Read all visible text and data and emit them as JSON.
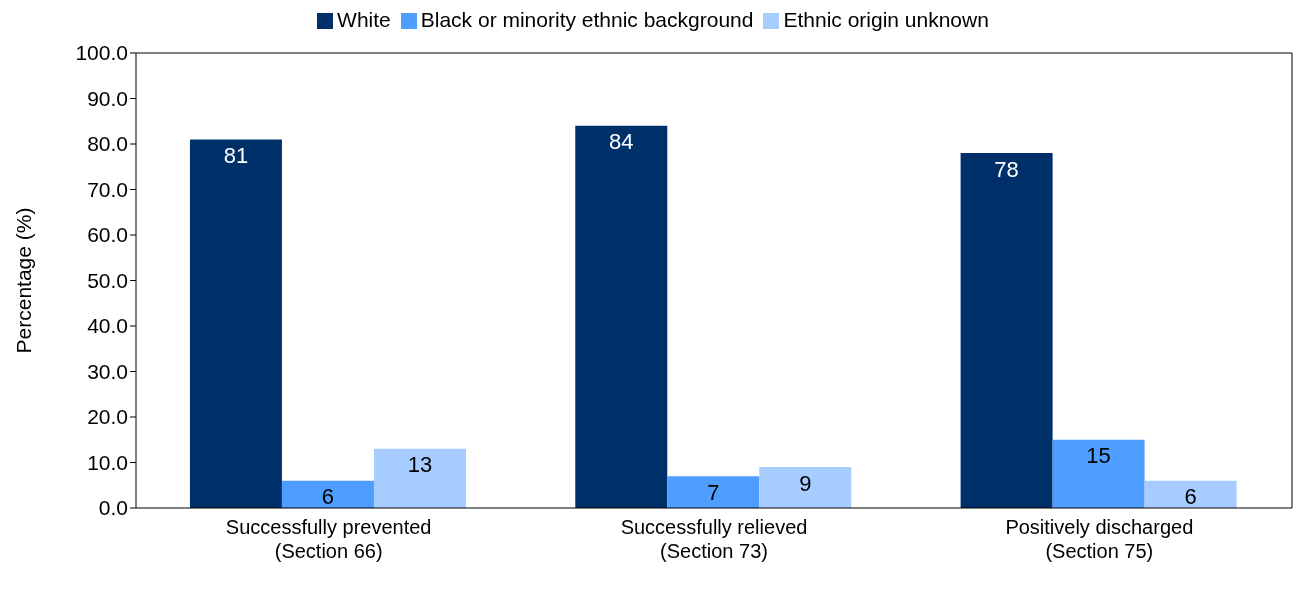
{
  "chart_data": {
    "type": "bar",
    "ylabel": "Percentage  (%)",
    "categories": [
      "Successfully prevented\n(Section 66)",
      "Successfully relieved\n(Section 73)",
      "Positively discharged\n(Section 75)"
    ],
    "series": [
      {
        "name": "White",
        "color": "#003069",
        "values": [
          81,
          84,
          78
        ]
      },
      {
        "name": "Black or minority ethnic background",
        "color": "#4d9eff",
        "values": [
          6,
          7,
          15
        ]
      },
      {
        "name": "Ethnic origin unknown",
        "color": "#a7ccff",
        "values": [
          13,
          9,
          6
        ]
      }
    ],
    "ylim": [
      0,
      100
    ],
    "yticks": [
      {
        "value": 0,
        "label": "0.0"
      },
      {
        "value": 10,
        "label": "10.0"
      },
      {
        "value": 20,
        "label": "20.0"
      },
      {
        "value": 30,
        "label": "30.0"
      },
      {
        "value": 40,
        "label": "40.0"
      },
      {
        "value": 50,
        "label": "50.0"
      },
      {
        "value": 60,
        "label": "60.0"
      },
      {
        "value": 70,
        "label": "70.0"
      },
      {
        "value": 80,
        "label": "80.0"
      },
      {
        "value": 90,
        "label": "90.0"
      },
      {
        "value": 100,
        "label": "100.0"
      }
    ],
    "grid": false,
    "legend": "top",
    "data_labels": true
  }
}
